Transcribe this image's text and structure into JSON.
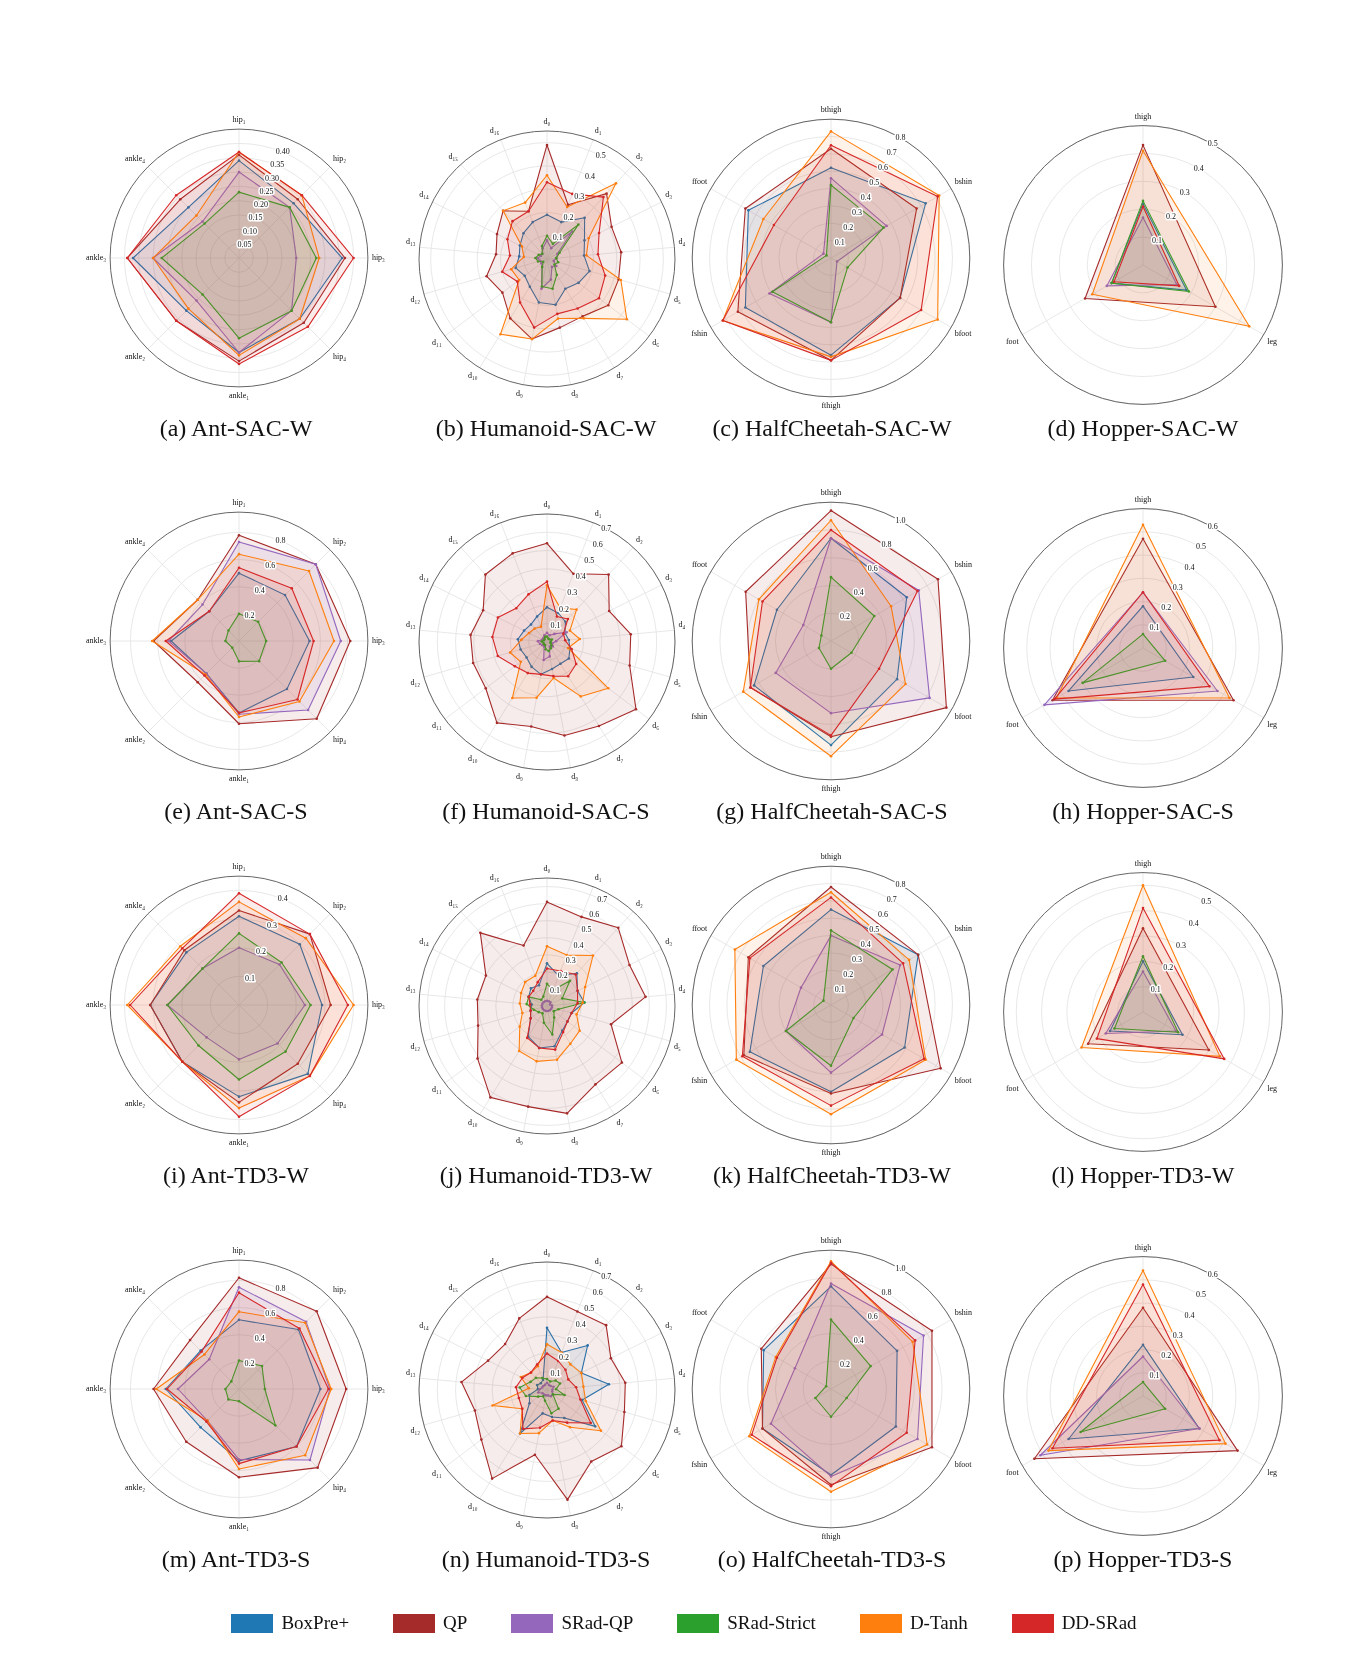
{
  "chart_data": [
    {
      "type": "radar",
      "title": "(a) Ant-SAC-W",
      "categories": [
        "hip₁",
        "hip₂",
        "hip₃",
        "hip₄",
        "ankle₁",
        "ankle₂",
        "ankle₃",
        "ankle₄"
      ],
      "ylim": [
        0,
        0.45
      ],
      "yticks": [
        0.05,
        {
          "value": 0.1,
          "label": "0.10"
        },
        0.15,
        {
          "value": 0.2,
          "label": "0.20"
        },
        0.25,
        {
          "value": 0.3,
          "label": "0.30"
        },
        0.35,
        {
          "value": 0.4,
          "label": "0.40"
        }
      ],
      "grid": true,
      "marker": "circle",
      "legend": "bottom",
      "series": [
        {
          "name": "BoxPre+",
          "color": "#1f77b4",
          "values": [
            0.34,
            0.27,
            0.36,
            0.3,
            0.33,
            0.26,
            0.37,
            0.25
          ]
        },
        {
          "name": "QP",
          "color": "#a52a2a",
          "values": [
            0.36,
            0.29,
            0.37,
            0.32,
            0.36,
            0.31,
            0.39,
            0.29
          ]
        },
        {
          "name": "SRad-QP",
          "color": "#9467bd",
          "values": [
            0.3,
            0.25,
            0.2,
            0.26,
            0.33,
            0.21,
            0.3,
            0.18
          ]
        },
        {
          "name": "SRad-Strict",
          "color": "#2ca02c",
          "values": [
            0.23,
            0.25,
            0.27,
            0.26,
            0.28,
            0.18,
            0.27,
            0.17
          ]
        },
        {
          "name": "D-Tanh",
          "color": "#ff7f0e",
          "values": [
            0.37,
            0.31,
            0.28,
            0.3,
            0.34,
            0.25,
            0.3,
            0.21
          ]
        },
        {
          "name": "DD-SRad",
          "color": "#d62728",
          "values": [
            0.37,
            0.31,
            0.4,
            0.34,
            0.37,
            0.31,
            0.39,
            0.31
          ]
        }
      ]
    },
    {
      "type": "radar",
      "title": "(b) Humanoid-SAC-W",
      "categories": [
        "d₀",
        "d₁",
        "d₂",
        "d₃",
        "d₄",
        "d₅",
        "d₆",
        "d₇",
        "d₈",
        "d₉",
        "d₁₀",
        "d₁₁",
        "d₁₂",
        "d₁₃",
        "d₁₄",
        "d₁₅",
        "d₁₆"
      ],
      "ylim": [
        0,
        0.55
      ],
      "yticks": [
        0.1,
        0.2,
        0.3,
        0.4,
        0.5
      ],
      "grid": true,
      "marker": "circle",
      "series": [
        {
          "name": "BoxPre+",
          "color": "#1f77b4",
          "values": [
            0.19,
            0.17,
            0.24,
            0.18,
            0.16,
            0.19,
            0.17,
            0.15,
            0.2,
            0.19,
            0.14,
            0.12,
            0.14,
            0.12,
            0.13,
            0.15,
            0.17
          ]
        },
        {
          "name": "QP",
          "color": "#a52a2a",
          "values": [
            0.49,
            0.25,
            0.38,
            0.31,
            0.32,
            0.32,
            0.33,
            0.29,
            0.3,
            0.35,
            0.3,
            0.24,
            0.27,
            0.22,
            0.24,
            0.28,
            0.22
          ]
        },
        {
          "name": "SRad-QP",
          "color": "#9467bd",
          "values": [
            0.08,
            0.05,
            0.16,
            0.05,
            0.04,
            0.03,
            0.05,
            0.04,
            0.09,
            0.13,
            0.04,
            0.03,
            0.03,
            0.04,
            0.03,
            0.03,
            0.05
          ]
        },
        {
          "name": "SRad-Strict",
          "color": "#2ca02c",
          "values": [
            0.1,
            0.07,
            0.2,
            0.06,
            0.04,
            0.05,
            0.04,
            0.08,
            0.13,
            0.12,
            0.04,
            0.02,
            0.04,
            0.05,
            0.04,
            0.03,
            0.06
          ]
        },
        {
          "name": "D-Tanh",
          "color": "#ff7f0e",
          "values": [
            0.36,
            0.24,
            0.44,
            0.2,
            0.17,
            0.33,
            0.43,
            0.3,
            0.26,
            0.35,
            0.38,
            0.15,
            0.16,
            0.1,
            0.12,
            0.28,
            0.26
          ]
        },
        {
          "name": "DD-SRad",
          "color": "#d62728",
          "values": [
            0.33,
            0.3,
            0.36,
            0.25,
            0.22,
            0.26,
            0.28,
            0.25,
            0.24,
            0.3,
            0.22,
            0.16,
            0.2,
            0.16,
            0.19,
            0.22,
            0.22
          ]
        }
      ]
    },
    {
      "type": "radar",
      "title": "(c) HalfCheetah-SAC-W",
      "categories": [
        "bthigh",
        "bshin",
        "bfoot",
        "fthigh",
        "fshin",
        "ffoot"
      ],
      "ylim": [
        0,
        0.8
      ],
      "yticks": [
        0.1,
        0.2,
        0.3,
        0.4,
        0.5,
        0.6,
        0.7,
        0.8
      ],
      "grid": true,
      "marker": "circle",
      "series": [
        {
          "name": "BoxPre+",
          "color": "#1f77b4",
          "values": [
            0.52,
            0.63,
            0.46,
            0.56,
            0.57,
            0.55
          ]
        },
        {
          "name": "QP",
          "color": "#a52a2a",
          "values": [
            0.63,
            0.57,
            0.46,
            0.59,
            0.62,
            0.57
          ]
        },
        {
          "name": "SRad-QP",
          "color": "#9467bd",
          "values": [
            0.46,
            0.37,
            0.04,
            0.37,
            0.41,
            0.05
          ]
        },
        {
          "name": "SRad-Strict",
          "color": "#2ca02c",
          "values": [
            0.42,
            0.35,
            0.11,
            0.37,
            0.39,
            0.03
          ]
        },
        {
          "name": "D-Tanh",
          "color": "#ff7f0e",
          "values": [
            0.73,
            0.72,
            0.71,
            0.57,
            0.72,
            0.45
          ]
        },
        {
          "name": "DD-SRad",
          "color": "#d62728",
          "values": [
            0.65,
            0.71,
            0.6,
            0.59,
            0.72,
            0.38
          ]
        }
      ]
    },
    {
      "type": "radar",
      "title": "(d) Hopper-SAC-W",
      "categories": [
        "thigh",
        "leg",
        "foot"
      ],
      "ylim": [
        0,
        0.5
      ],
      "yticks": [
        0.1,
        0.2,
        0.3,
        0.4,
        0.5
      ],
      "grid": true,
      "marker": "circle",
      "series": [
        {
          "name": "BoxPre+",
          "color": "#1f77b4",
          "values": [
            0.22,
            0.18,
            0.13
          ]
        },
        {
          "name": "QP",
          "color": "#a52a2a",
          "values": [
            0.43,
            0.3,
            0.24
          ]
        },
        {
          "name": "SRad-QP",
          "color": "#9467bd",
          "values": [
            0.17,
            0.14,
            0.15
          ]
        },
        {
          "name": "SRad-Strict",
          "color": "#2ca02c",
          "values": [
            0.23,
            0.19,
            0.13
          ]
        },
        {
          "name": "D-Tanh",
          "color": "#ff7f0e",
          "values": [
            0.41,
            0.44,
            0.21
          ]
        },
        {
          "name": "DD-SRad",
          "color": "#d62728",
          "values": [
            0.21,
            0.15,
            0.12
          ]
        }
      ]
    },
    {
      "type": "radar",
      "title": "(e) Ant-SAC-S",
      "categories": [
        "hip₁",
        "hip₂",
        "hip₃",
        "hip₄",
        "ankle₁",
        "ankle₂",
        "ankle₃",
        "ankle₄"
      ],
      "ylim": [
        0,
        0.95
      ],
      "yticks": [
        0.2,
        0.4,
        0.6,
        0.8
      ],
      "grid": true,
      "marker": "circle",
      "series": [
        {
          "name": "BoxPre+",
          "color": "#1f77b4",
          "values": [
            0.5,
            0.48,
            0.52,
            0.5,
            0.53,
            0.34,
            0.5,
            0.31
          ]
        },
        {
          "name": "QP",
          "color": "#a52a2a",
          "values": [
            0.78,
            0.8,
            0.82,
            0.81,
            0.61,
            0.43,
            0.63,
            0.43
          ]
        },
        {
          "name": "SRad-QP",
          "color": "#9467bd",
          "values": [
            0.73,
            0.8,
            0.75,
            0.72,
            0.54,
            0.34,
            0.52,
            0.38
          ]
        },
        {
          "name": "SRad-Strict",
          "color": "#2ca02c",
          "values": [
            0.2,
            0.2,
            0.2,
            0.21,
            0.15,
            0.07,
            0.1,
            0.11
          ]
        },
        {
          "name": "D-Tanh",
          "color": "#ff7f0e",
          "values": [
            0.64,
            0.73,
            0.7,
            0.63,
            0.56,
            0.35,
            0.64,
            0.43
          ]
        },
        {
          "name": "DD-SRad",
          "color": "#d62728",
          "values": [
            0.54,
            0.55,
            0.55,
            0.61,
            0.53,
            0.36,
            0.54,
            0.31
          ]
        }
      ]
    },
    {
      "type": "radar",
      "title": "(f) Humanoid-SAC-S",
      "categories": [
        "d₀",
        "d₁",
        "d₂",
        "d₃",
        "d₄",
        "d₅",
        "d₆",
        "d₇",
        "d₈",
        "d₉",
        "d₁₀",
        "d₁₁",
        "d₁₂",
        "d₁₃",
        "d₁₄",
        "d₁₅",
        "d₁₆"
      ],
      "ylim": [
        0,
        0.7
      ],
      "yticks": [
        0.1,
        0.2,
        0.3,
        0.4,
        0.5,
        0.6,
        0.7
      ],
      "grid": true,
      "marker": "circle",
      "series": [
        {
          "name": "BoxPre+",
          "color": "#1f77b4",
          "values": [
            0.19,
            0.17,
            0.15,
            0.11,
            0.12,
            0.13,
            0.15,
            0.14,
            0.15,
            0.18,
            0.16,
            0.14,
            0.15,
            0.16,
            0.14,
            0.13,
            0.15
          ]
        },
        {
          "name": "QP",
          "color": "#a52a2a",
          "values": [
            0.54,
            0.4,
            0.5,
            0.38,
            0.46,
            0.47,
            0.61,
            0.54,
            0.52,
            0.47,
            0.52,
            0.42,
            0.42,
            0.42,
            0.39,
            0.5,
            0.52
          ]
        },
        {
          "name": "SRad-QP",
          "color": "#9467bd",
          "values": [
            0.05,
            0.04,
            0.06,
            0.12,
            0.05,
            0.03,
            0.04,
            0.03,
            0.08,
            0.1,
            0.03,
            0.03,
            0.04,
            0.05,
            0.03,
            0.03,
            0.04
          ]
        },
        {
          "name": "SRad-Strict",
          "color": "#2ca02c",
          "values": [
            0.03,
            0.02,
            0.02,
            0.03,
            0.02,
            0.02,
            0.03,
            0.04,
            0.05,
            0.04,
            0.02,
            0.02,
            0.02,
            0.03,
            0.02,
            0.02,
            0.03
          ]
        },
        {
          "name": "D-Tanh",
          "color": "#ff7f0e",
          "values": [
            0.31,
            0.2,
            0.24,
            0.14,
            0.18,
            0.12,
            0.42,
            0.35,
            0.2,
            0.31,
            0.36,
            0.18,
            0.21,
            0.14,
            0.11,
            0.1,
            0.09
          ]
        },
        {
          "name": "DD-SRad",
          "color": "#d62728",
          "values": [
            0.33,
            0.15,
            0.17,
            0.1,
            0.1,
            0.14,
            0.2,
            0.22,
            0.19,
            0.18,
            0.2,
            0.22,
            0.28,
            0.3,
            0.3,
            0.25,
            0.28
          ]
        }
      ]
    },
    {
      "type": "radar",
      "title": "(g) HalfCheetah-SAC-S",
      "categories": [
        "bthigh",
        "bshin",
        "bfoot",
        "fthigh",
        "fshin",
        "ffoot"
      ],
      "ylim": [
        0,
        1
      ],
      "yticks": [
        0.2,
        0.4,
        0.6,
        0.8,
        {
          "value": 1,
          "label": "1.0"
        }
      ],
      "grid": true,
      "marker": "circle",
      "series": [
        {
          "name": "BoxPre+",
          "color": "#1f77b4",
          "values": [
            0.74,
            0.63,
            0.55,
            0.75,
            0.64,
            0.45
          ]
        },
        {
          "name": "QP",
          "color": "#a52a2a",
          "values": [
            0.94,
            0.89,
            0.96,
            0.69,
            0.67,
            0.71
          ]
        },
        {
          "name": "SRad-QP",
          "color": "#9467bd",
          "values": [
            0.74,
            0.73,
            0.82,
            0.52,
            0.46,
            0.23
          ]
        },
        {
          "name": "SRad-Strict",
          "color": "#2ca02c",
          "values": [
            0.46,
            0.36,
            0.17,
            0.2,
            0.1,
            0.08
          ]
        },
        {
          "name": "D-Tanh",
          "color": "#ff7f0e",
          "values": [
            0.87,
            0.5,
            0.62,
            0.83,
            0.73,
            0.6
          ]
        },
        {
          "name": "DD-SRad",
          "color": "#d62728",
          "values": [
            0.8,
            0.72,
            0.4,
            0.68,
            0.67,
            0.57
          ]
        }
      ]
    },
    {
      "type": "radar",
      "title": "(h) Hopper-SAC-S",
      "categories": [
        "thigh",
        "leg",
        "foot"
      ],
      "ylim": [
        0,
        0.6
      ],
      "yticks": [
        0.1,
        0.2,
        0.3,
        0.4,
        0.5,
        0.6
      ],
      "grid": true,
      "marker": "circle",
      "series": [
        {
          "name": "BoxPre+",
          "color": "#1f77b4",
          "values": [
            0.18,
            0.25,
            0.37
          ]
        },
        {
          "name": "QP",
          "color": "#a52a2a",
          "values": [
            0.47,
            0.45,
            0.45
          ]
        },
        {
          "name": "SRad-QP",
          "color": "#9467bd",
          "values": [
            0.24,
            0.37,
            0.49
          ]
        },
        {
          "name": "SRad-Strict",
          "color": "#2ca02c",
          "values": [
            0.06,
            0.11,
            0.3
          ]
        },
        {
          "name": "D-Tanh",
          "color": "#ff7f0e",
          "values": [
            0.53,
            0.43,
            0.43
          ]
        },
        {
          "name": "DD-SRad",
          "color": "#d62728",
          "values": [
            0.24,
            0.33,
            0.44
          ]
        }
      ]
    },
    {
      "type": "radar",
      "title": "(i) Ant-TD3-W",
      "categories": [
        "hip₁",
        "hip₂",
        "hip₃",
        "hip₄",
        "ankle₁",
        "ankle₂",
        "ankle₃",
        "ankle₄"
      ],
      "ylim": [
        0,
        0.45
      ],
      "yticks": [
        0.1,
        0.2,
        0.3,
        0.4
      ],
      "grid": true,
      "marker": "circle",
      "series": [
        {
          "name": "BoxPre+",
          "color": "#1f77b4",
          "values": [
            0.31,
            0.3,
            0.29,
            0.34,
            0.32,
            0.28,
            0.31,
            0.26
          ]
        },
        {
          "name": "QP",
          "color": "#a52a2a",
          "values": [
            0.33,
            0.35,
            0.32,
            0.29,
            0.34,
            0.28,
            0.31,
            0.27
          ]
        },
        {
          "name": "SRad-QP",
          "color": "#9467bd",
          "values": [
            0.2,
            0.2,
            0.23,
            0.19,
            0.19,
            0.16,
            0.25,
            0.18
          ]
        },
        {
          "name": "SRad-Strict",
          "color": "#2ca02c",
          "values": [
            0.25,
            0.21,
            0.25,
            0.23,
            0.26,
            0.2,
            0.25,
            0.18
          ]
        },
        {
          "name": "D-Tanh",
          "color": "#ff7f0e",
          "values": [
            0.36,
            0.33,
            0.4,
            0.35,
            0.36,
            0.28,
            0.39,
            0.29
          ]
        },
        {
          "name": "DD-SRad",
          "color": "#d62728",
          "values": [
            0.39,
            0.35,
            0.38,
            0.35,
            0.39,
            0.28,
            0.38,
            0.28
          ]
        }
      ]
    },
    {
      "type": "radar",
      "title": "(j) Humanoid-TD3-W",
      "categories": [
        "d₀",
        "d₁",
        "d₂",
        "d₃",
        "d₄",
        "d₅",
        "d₆",
        "d₇",
        "d₈",
        "d₉",
        "d₁₀",
        "d₁₁",
        "d₁₂",
        "d₁₃",
        "d₁₄",
        "d₁₅",
        "d₁₆"
      ],
      "ylim": [
        0,
        0.75
      ],
      "yticks": [
        0.1,
        0.2,
        0.3,
        0.4,
        0.5,
        0.6,
        0.7
      ],
      "grid": true,
      "marker": "circle",
      "series": [
        {
          "name": "BoxPre+",
          "color": "#1f77b4",
          "values": [
            0.25,
            0.19,
            0.26,
            0.2,
            0.22,
            0.15,
            0.15,
            0.17,
            0.24,
            0.25,
            0.21,
            0.12,
            0.1,
            0.09,
            0.12,
            0.14,
            0.13
          ]
        },
        {
          "name": "QP",
          "color": "#a52a2a",
          "values": [
            0.61,
            0.56,
            0.62,
            0.54,
            0.58,
            0.39,
            0.55,
            0.54,
            0.64,
            0.6,
            0.63,
            0.51,
            0.42,
            0.41,
            0.4,
            0.58,
            0.38
          ]
        },
        {
          "name": "SRad-QP",
          "color": "#9467bd",
          "values": [
            0.03,
            0.03,
            0.03,
            0.02,
            0.03,
            0.03,
            0.03,
            0.03,
            0.03,
            0.03,
            0.03,
            0.03,
            0.03,
            0.03,
            0.03,
            0.03,
            0.03
          ]
        },
        {
          "name": "SRad-Strict",
          "color": "#2ca02c",
          "values": [
            0.13,
            0.1,
            0.2,
            0.1,
            0.22,
            0.07,
            0.05,
            0.08,
            0.17,
            0.1,
            0.05,
            0.06,
            0.08,
            0.12,
            0.12,
            0.05,
            0.06
          ]
        },
        {
          "name": "D-Tanh",
          "color": "#ff7f0e",
          "values": [
            0.35,
            0.32,
            0.4,
            0.25,
            0.21,
            0.18,
            0.24,
            0.26,
            0.32,
            0.33,
            0.31,
            0.2,
            0.15,
            0.16,
            0.17,
            0.19,
            0.19
          ]
        },
        {
          "name": "DD-SRad",
          "color": "#d62728",
          "values": [
            0.22,
            0.22,
            0.25,
            0.2,
            0.18,
            0.15,
            0.15,
            0.18,
            0.26,
            0.25,
            0.22,
            0.12,
            0.1,
            0.1,
            0.12,
            0.12,
            0.15
          ]
        }
      ]
    },
    {
      "type": "radar",
      "title": "(k) HalfCheetah-TD3-W",
      "categories": [
        "bthigh",
        "bshin",
        "bfoot",
        "fthigh",
        "fshin",
        "ffoot"
      ],
      "ylim": [
        0,
        0.8
      ],
      "yticks": [
        0.1,
        0.2,
        0.3,
        0.4,
        0.5,
        0.6,
        0.7,
        0.8
      ],
      "grid": true,
      "marker": "circle",
      "series": [
        {
          "name": "BoxPre+",
          "color": "#1f77b4",
          "values": [
            0.55,
            0.58,
            0.49,
            0.5,
            0.54,
            0.45
          ]
        },
        {
          "name": "QP",
          "color": "#a52a2a",
          "values": [
            0.68,
            0.58,
            0.73,
            0.51,
            0.58,
            0.55
          ]
        },
        {
          "name": "SRad-QP",
          "color": "#9467bd",
          "values": [
            0.4,
            0.46,
            0.34,
            0.39,
            0.3,
            0.2
          ]
        },
        {
          "name": "SRad-Strict",
          "color": "#2ca02c",
          "values": [
            0.43,
            0.41,
            0.15,
            0.35,
            0.3,
            0.05
          ]
        },
        {
          "name": "D-Tanh",
          "color": "#ff7f0e",
          "values": [
            0.65,
            0.52,
            0.63,
            0.63,
            0.63,
            0.64
          ]
        },
        {
          "name": "DD-SRad",
          "color": "#d62728",
          "values": [
            0.62,
            0.48,
            0.62,
            0.58,
            0.59,
            0.54
          ]
        }
      ]
    },
    {
      "type": "radar",
      "title": "(l) Hopper-TD3-W",
      "categories": [
        "thigh",
        "leg",
        "foot"
      ],
      "ylim": [
        0,
        0.55
      ],
      "yticks": [
        0.1,
        0.2,
        0.3,
        0.4,
        0.5
      ],
      "grid": true,
      "marker": "circle",
      "series": [
        {
          "name": "BoxPre+",
          "color": "#1f77b4",
          "values": [
            0.2,
            0.18,
            0.15
          ]
        },
        {
          "name": "QP",
          "color": "#a52a2a",
          "values": [
            0.33,
            0.3,
            0.25
          ]
        },
        {
          "name": "SRad-QP",
          "color": "#9467bd",
          "values": [
            0.16,
            0.15,
            0.17
          ]
        },
        {
          "name": "SRad-Strict",
          "color": "#2ca02c",
          "values": [
            0.22,
            0.16,
            0.13
          ]
        },
        {
          "name": "D-Tanh",
          "color": "#ff7f0e",
          "values": [
            0.5,
            0.35,
            0.28
          ]
        },
        {
          "name": "DD-SRad",
          "color": "#d62728",
          "values": [
            0.41,
            0.37,
            0.21
          ]
        }
      ]
    },
    {
      "type": "radar",
      "title": "(m) Ant-TD3-S",
      "categories": [
        "hip₁",
        "hip₂",
        "hip₃",
        "hip₄",
        "ankle₁",
        "ankle₂",
        "ankle₃",
        "ankle₄"
      ],
      "ylim": [
        0,
        0.95
      ],
      "yticks": [
        0.2,
        0.4,
        0.6,
        0.8
      ],
      "grid": true,
      "marker": "circle",
      "series": [
        {
          "name": "BoxPre+",
          "color": "#1f77b4",
          "values": [
            0.51,
            0.62,
            0.6,
            0.6,
            0.53,
            0.4,
            0.54,
            0.4
          ]
        },
        {
          "name": "QP",
          "color": "#a52a2a",
          "values": [
            0.82,
            0.81,
            0.79,
            0.82,
            0.65,
            0.55,
            0.63,
            0.51
          ]
        },
        {
          "name": "SRad-QP",
          "color": "#9467bd",
          "values": [
            0.75,
            0.7,
            0.67,
            0.74,
            0.52,
            0.33,
            0.45,
            0.31
          ]
        },
        {
          "name": "SRad-Strict",
          "color": "#2ca02c",
          "values": [
            0.21,
            0.24,
            0.19,
            0.38,
            0.09,
            0.11,
            0.1,
            0.08
          ]
        },
        {
          "name": "D-Tanh",
          "color": "#ff7f0e",
          "values": [
            0.57,
            0.69,
            0.68,
            0.69,
            0.59,
            0.33,
            0.61,
            0.36
          ]
        },
        {
          "name": "DD-SRad",
          "color": "#d62728",
          "values": [
            0.71,
            0.63,
            0.66,
            0.6,
            0.55,
            0.34,
            0.53,
            0.39
          ]
        }
      ]
    },
    {
      "type": "radar",
      "title": "(n) Humanoid-TD3-S",
      "categories": [
        "d₀",
        "d₁",
        "d₂",
        "d₃",
        "d₄",
        "d₅",
        "d₆",
        "d₇",
        "d₈",
        "d₉",
        "d₁₀",
        "d₁₁",
        "d₁₂",
        "d₁₃",
        "d₁₄",
        "d₁₅",
        "d₁₆"
      ],
      "ylim": [
        0,
        0.7
      ],
      "yticks": [
        0.1,
        0.2,
        0.3,
        0.4,
        0.5,
        0.6,
        0.7
      ],
      "grid": true,
      "marker": "circle",
      "series": [
        {
          "name": "BoxPre+",
          "color": "#1f77b4",
          "values": [
            0.34,
            0.22,
            0.33,
            0.21,
            0.34,
            0.2,
            0.33,
            0.18,
            0.15,
            0.13,
            0.28,
            0.12,
            0.1,
            0.05,
            0.06,
            0.05,
            0.06
          ]
        },
        {
          "name": "QP",
          "color": "#a52a2a",
          "values": [
            0.51,
            0.46,
            0.48,
            0.39,
            0.43,
            0.44,
            0.51,
            0.46,
            0.61,
            0.36,
            0.57,
            0.45,
            0.41,
            0.47,
            0.36,
            0.34,
            0.42
          ]
        },
        {
          "name": "SRad-QP",
          "color": "#9467bd",
          "values": [
            0.04,
            0.03,
            0.03,
            0.04,
            0.03,
            0.03,
            0.04,
            0.04,
            0.03,
            0.03,
            0.03,
            0.03,
            0.05,
            0.04,
            0.03,
            0.03,
            0.03
          ]
        },
        {
          "name": "SRad-Strict",
          "color": "#2ca02c",
          "values": [
            0.06,
            0.05,
            0.07,
            0.08,
            0.05,
            0.1,
            0.04,
            0.12,
            0.13,
            0.06,
            0.04,
            0.06,
            0.12,
            0.15,
            0.1,
            0.09,
            0.07
          ]
        },
        {
          "name": "D-Tanh",
          "color": "#ff7f0e",
          "values": [
            0.25,
            0.22,
            0.19,
            0.21,
            0.2,
            0.22,
            0.37,
            0.24,
            0.17,
            0.24,
            0.28,
            0.17,
            0.31,
            0.1,
            0.16,
            0.13,
            0.14
          ]
        },
        {
          "name": "DD-SRad",
          "color": "#d62728",
          "values": [
            0.2,
            0.17,
            0.15,
            0.13,
            0.16,
            0.19,
            0.3,
            0.21,
            0.17,
            0.21,
            0.25,
            0.17,
            0.16,
            0.17,
            0.15,
            0.13,
            0.15
          ]
        }
      ]
    },
    {
      "type": "radar",
      "title": "(o) HalfCheetah-TD3-S",
      "categories": [
        "bthigh",
        "bshin",
        "bfoot",
        "fthigh",
        "fshin",
        "ffoot"
      ],
      "ylim": [
        0,
        1
      ],
      "yticks": [
        0.2,
        0.4,
        0.6,
        0.8,
        {
          "value": 1,
          "label": "1.0"
        }
      ],
      "grid": true,
      "marker": "circle",
      "series": [
        {
          "name": "BoxPre+",
          "color": "#1f77b4",
          "values": [
            0.74,
            0.55,
            0.54,
            0.62,
            0.57,
            0.56
          ]
        },
        {
          "name": "QP",
          "color": "#a52a2a",
          "values": [
            0.9,
            0.84,
            0.84,
            0.69,
            0.57,
            0.58
          ]
        },
        {
          "name": "SRad-QP",
          "color": "#9467bd",
          "values": [
            0.76,
            0.77,
            0.72,
            0.63,
            0.5,
            0.3
          ]
        },
        {
          "name": "SRad-Strict",
          "color": "#2ca02c",
          "values": [
            0.5,
            0.33,
            0.13,
            0.2,
            0.13,
            0.04
          ]
        },
        {
          "name": "D-Tanh",
          "color": "#ff7f0e",
          "values": [
            0.92,
            0.68,
            0.8,
            0.74,
            0.68,
            0.46
          ]
        },
        {
          "name": "DD-SRad",
          "color": "#d62728",
          "values": [
            0.91,
            0.7,
            0.63,
            0.7,
            0.66,
            0.45
          ]
        }
      ]
    },
    {
      "type": "radar",
      "title": "(p) Hopper-TD3-S",
      "categories": [
        "thigh",
        "leg",
        "foot"
      ],
      "ylim": [
        0,
        0.6
      ],
      "yticks": [
        0.1,
        0.2,
        0.3,
        0.4,
        0.5,
        0.6
      ],
      "grid": true,
      "marker": "circle",
      "series": [
        {
          "name": "BoxPre+",
          "color": "#1f77b4",
          "values": [
            0.22,
            0.28,
            0.37
          ]
        },
        {
          "name": "QP",
          "color": "#a52a2a",
          "values": [
            0.38,
            0.47,
            0.54
          ]
        },
        {
          "name": "SRad-QP",
          "color": "#9467bd",
          "values": [
            0.17,
            0.28,
            0.51
          ]
        },
        {
          "name": "SRad-Strict",
          "color": "#2ca02c",
          "values": [
            0.06,
            0.11,
            0.31
          ]
        },
        {
          "name": "D-Tanh",
          "color": "#ff7f0e",
          "values": [
            0.54,
            0.41,
            0.47
          ]
        },
        {
          "name": "DD-SRad",
          "color": "#d62728",
          "values": [
            0.48,
            0.38,
            0.45
          ]
        }
      ]
    }
  ]
}
